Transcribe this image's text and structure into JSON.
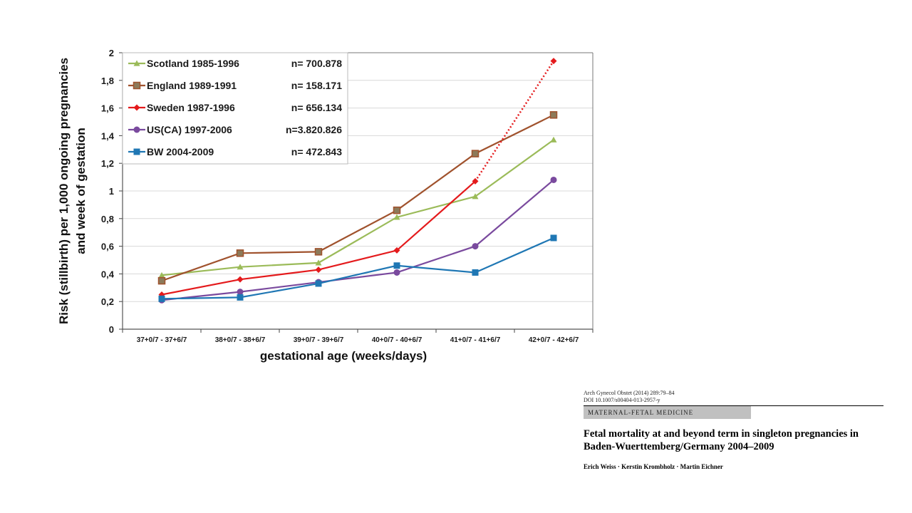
{
  "chart_data": {
    "type": "line",
    "title": "",
    "xlabel": "gestational age (weeks/days)",
    "ylabel_line1": "Risk (stillbirth) per 1,000 ongoing pregnancies",
    "ylabel_line2": "and week of gestation",
    "categories": [
      "37+0/7 - 37+6/7",
      "38+0/7 - 38+6/7",
      "39+0/7 - 39+6/7",
      "40+0/7 - 40+6/7",
      "41+0/7 - 41+6/7",
      "42+0/7 - 42+6/7"
    ],
    "ylim": [
      0,
      2
    ],
    "yticks": [
      "0",
      "0,2",
      "0,4",
      "0,6",
      "0,8",
      "1",
      "1,2",
      "1,4",
      "1,6",
      "1,8",
      "2"
    ],
    "grid": true,
    "legend_position": "top-left",
    "series": [
      {
        "name": "Scotland 1985-1996",
        "n": "n=  700.878",
        "color": "#9bbb59",
        "marker": "triangle",
        "values": [
          0.39,
          0.45,
          0.48,
          0.81,
          0.96,
          1.37
        ]
      },
      {
        "name": "England 1989-1991",
        "n": "n=  158.171",
        "color": "#a0522d",
        "marker": "square-hollow",
        "values": [
          0.35,
          0.55,
          0.56,
          0.86,
          1.27,
          1.55
        ]
      },
      {
        "name": "Sweden 1987-1996",
        "n": "n=  656.134",
        "color": "#e41a1c",
        "marker": "diamond",
        "values": [
          0.25,
          0.36,
          0.43,
          0.57,
          1.07,
          1.94
        ],
        "dotted_last_segment": true
      },
      {
        "name": "US(CA) 1997-2006",
        "n": "n=3.820.826",
        "color": "#7a4a9e",
        "marker": "circle",
        "values": [
          0.21,
          0.27,
          0.34,
          0.41,
          0.6,
          1.08
        ]
      },
      {
        "name": "BW 2004-2009",
        "n": "n=  472.843",
        "color": "#1f77b4",
        "marker": "square",
        "values": [
          0.22,
          0.23,
          0.33,
          0.46,
          0.41,
          0.66
        ]
      }
    ]
  },
  "paper": {
    "citation": "Arch Gynecol Obstet (2014) 289:79–84",
    "doi": "DOI 10.1007/s00404-013-2957-y",
    "section": "MATERNAL-FETAL MEDICINE",
    "title": "Fetal mortality at and beyond term in singleton pregnancies in Baden-Wuerttemberg/Germany 2004–2009",
    "authors": "Erich Weiss · Kerstin Krombholz · Martin Eichner"
  }
}
